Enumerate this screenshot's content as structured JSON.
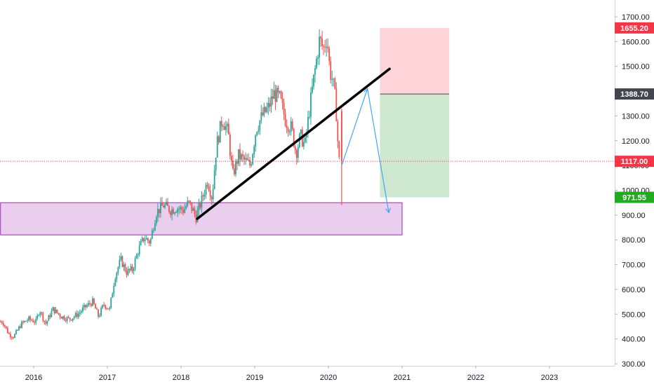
{
  "chart_data": {
    "type": "candlestick",
    "symbol_view": "weekly price chart",
    "x_axis": {
      "ticks": [
        "2016",
        "2017",
        "2018",
        "2019",
        "2020",
        "2021",
        "2022",
        "2023"
      ],
      "range": [
        2015.6,
        2023.9
      ]
    },
    "y_axis": {
      "ticks": [
        "300.00",
        "400.00",
        "500.00",
        "600.00",
        "700.00",
        "800.00",
        "900.00",
        "1000.00",
        "1100.00",
        "1200.00",
        "1300.00",
        "1400.00",
        "1500.00",
        "1600.00",
        "1700.00"
      ],
      "range": [
        290,
        1725
      ],
      "side": "right"
    },
    "price_path": [
      [
        2015.6,
        470
      ],
      [
        2015.68,
        420
      ],
      [
        2015.75,
        410
      ],
      [
        2015.85,
        460
      ],
      [
        2015.95,
        480
      ],
      [
        2016.05,
        470
      ],
      [
        2016.1,
        520
      ],
      [
        2016.18,
        460
      ],
      [
        2016.28,
        520
      ],
      [
        2016.4,
        490
      ],
      [
        2016.5,
        480
      ],
      [
        2016.62,
        500
      ],
      [
        2016.72,
        530
      ],
      [
        2016.82,
        550
      ],
      [
        2016.9,
        490
      ],
      [
        2016.97,
        540
      ],
      [
        2017.05,
        520
      ],
      [
        2017.12,
        650
      ],
      [
        2017.2,
        720
      ],
      [
        2017.28,
        670
      ],
      [
        2017.36,
        680
      ],
      [
        2017.44,
        760
      ],
      [
        2017.52,
        810
      ],
      [
        2017.6,
        790
      ],
      [
        2017.68,
        910
      ],
      [
        2017.78,
        940
      ],
      [
        2017.88,
        920
      ],
      [
        2017.96,
        930
      ],
      [
        2018.05,
        920
      ],
      [
        2018.12,
        950
      ],
      [
        2018.18,
        920
      ],
      [
        2018.22,
        890
      ],
      [
        2018.3,
        960
      ],
      [
        2018.38,
        1040
      ],
      [
        2018.44,
        970
      ],
      [
        2018.5,
        1180
      ],
      [
        2018.58,
        1290
      ],
      [
        2018.66,
        1230
      ],
      [
        2018.72,
        1060
      ],
      [
        2018.8,
        1140
      ],
      [
        2018.88,
        1120
      ],
      [
        2018.96,
        1100
      ],
      [
        2019.04,
        1250
      ],
      [
        2019.12,
        1300
      ],
      [
        2019.2,
        1330
      ],
      [
        2019.28,
        1390
      ],
      [
        2019.36,
        1370
      ],
      [
        2019.44,
        1280
      ],
      [
        2019.52,
        1250
      ],
      [
        2019.58,
        1150
      ],
      [
        2019.64,
        1220
      ],
      [
        2019.7,
        1180
      ],
      [
        2019.76,
        1320
      ],
      [
        2019.82,
        1450
      ],
      [
        2019.9,
        1610
      ],
      [
        2019.95,
        1570
      ],
      [
        2020.0,
        1620
      ],
      [
        2020.04,
        1480
      ],
      [
        2020.08,
        1440
      ],
      [
        2020.12,
        1350
      ],
      [
        2020.16,
        1120
      ],
      [
        2020.18,
        1120
      ]
    ],
    "current_price": 1117.0,
    "price_tags": [
      {
        "label": "1655.20",
        "value": 1655.2,
        "color": "#f23645"
      },
      {
        "label": "1388.70",
        "value": 1388.7,
        "color": "#434651"
      },
      {
        "label": "1117.00",
        "value": 1117.0,
        "color": "#f23645"
      },
      {
        "label": "971.55",
        "value": 971.55,
        "color": "#22ab21"
      }
    ],
    "annotations": {
      "trendline": {
        "x": [
          2018.22,
          2020.83
        ],
        "y": [
          885,
          1490
        ],
        "color": "#000000"
      },
      "support_zone": {
        "x": [
          2015.55,
          2021.0
        ],
        "y": [
          820,
          950
        ],
        "fill": "#e1bee7",
        "border": "#9c27b0"
      },
      "short_position": {
        "x": [
          2020.7,
          2021.64
        ],
        "stop": 1655.2,
        "entry": 1388.7,
        "target": 971.55,
        "risk_color": "#ffcdd2",
        "reward_color": "#c8e6c9"
      },
      "projection_path": {
        "x": [
          2020.18,
          2020.53,
          2020.82
        ],
        "y": [
          1100,
          1410,
          910
        ],
        "color": "#42a5f5"
      }
    },
    "colors": {
      "up": "#26a69a",
      "down": "#ef5350",
      "grid": "#e0e3eb"
    }
  }
}
